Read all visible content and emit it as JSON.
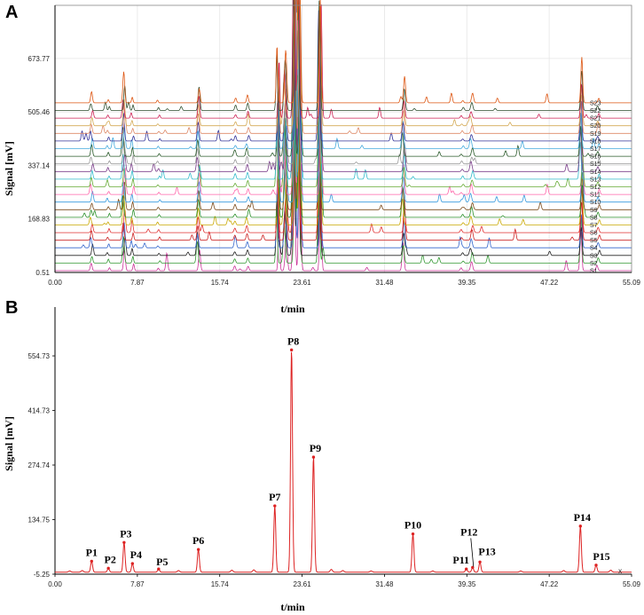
{
  "panels": {
    "a_letter": "A",
    "b_letter": "B"
  },
  "chart_data": [
    {
      "type": "line",
      "panel": "A",
      "xlabel": "",
      "ylabel": "Signal [mV]",
      "x_ticks": [
        "0.00",
        "7.87",
        "15.74",
        "23.61",
        "31.48",
        "39.35",
        "47.22",
        "55.09"
      ],
      "y_ticks": [
        "0.51",
        "168.83",
        "337.14",
        "505.46",
        "673.77"
      ],
      "xlim": [
        0,
        55.09
      ],
      "ylim": [
        0.51,
        841
      ],
      "grid": true,
      "offset_per_trace_mV": 24,
      "series": [
        {
          "name": "S1",
          "color": "#cc3399"
        },
        {
          "name": "S2",
          "color": "#339933"
        },
        {
          "name": "S3",
          "color": "#222222"
        },
        {
          "name": "S4",
          "color": "#3366cc"
        },
        {
          "name": "S5",
          "color": "#cc2222"
        },
        {
          "name": "S6",
          "color": "#e03030"
        },
        {
          "name": "S7",
          "color": "#c9a800"
        },
        {
          "name": "S8",
          "color": "#2b8f2b"
        },
        {
          "name": "S9",
          "color": "#7a4a1a"
        },
        {
          "name": "S10",
          "color": "#3399dd"
        },
        {
          "name": "S11",
          "color": "#ff66aa"
        },
        {
          "name": "S12",
          "color": "#66aa33"
        },
        {
          "name": "S13",
          "color": "#33bbcc"
        },
        {
          "name": "S14",
          "color": "#7a3d8a"
        },
        {
          "name": "S15",
          "color": "#999999"
        },
        {
          "name": "S16",
          "color": "#2a5a2a"
        },
        {
          "name": "S17",
          "color": "#44aadd"
        },
        {
          "name": "S18",
          "color": "#333399"
        },
        {
          "name": "S19",
          "color": "#dd8866"
        },
        {
          "name": "S20",
          "color": "#d4aa55"
        },
        {
          "name": "S21",
          "color": "#cc2255"
        },
        {
          "name": "S22",
          "color": "#2f4f2f"
        },
        {
          "name": "S23",
          "color": "#dd5511"
        }
      ],
      "peaks": [
        {
          "t": 3.5,
          "h": 28,
          "w": 0.12
        },
        {
          "t": 5.1,
          "h": 10,
          "w": 0.1
        },
        {
          "t": 6.6,
          "h": 76,
          "w": 0.12
        },
        {
          "t": 7.4,
          "h": 22,
          "w": 0.1
        },
        {
          "t": 9.9,
          "h": 8,
          "w": 0.1
        },
        {
          "t": 13.7,
          "h": 58,
          "w": 0.12
        },
        {
          "t": 17.2,
          "h": 14,
          "w": 0.12
        },
        {
          "t": 18.4,
          "h": 20,
          "w": 0.12
        },
        {
          "t": 21.3,
          "h": 170,
          "w": 0.1
        },
        {
          "t": 22.0,
          "h": 150,
          "w": 0.14
        },
        {
          "t": 22.9,
          "h": 610,
          "w": 0.13
        },
        {
          "t": 23.3,
          "h": 420,
          "w": 0.14
        },
        {
          "t": 25.3,
          "h": 320,
          "w": 0.12
        },
        {
          "t": 33.3,
          "h": 78,
          "w": 0.13
        },
        {
          "t": 38.9,
          "h": 8,
          "w": 0.12
        },
        {
          "t": 39.8,
          "h": 28,
          "w": 0.14
        },
        {
          "t": 50.3,
          "h": 122,
          "w": 0.12
        },
        {
          "t": 51.9,
          "h": 18,
          "w": 0.12
        }
      ]
    },
    {
      "type": "line",
      "panel": "B",
      "xlabel": "t/min",
      "ylabel": "Signal [mV]",
      "x_ticks": [
        "0.00",
        "7.87",
        "15.74",
        "23.61",
        "31.48",
        "39.35",
        "47.22",
        "55.09"
      ],
      "y_ticks": [
        "-5.25",
        "134.75",
        "274.74",
        "414.73",
        "554.73"
      ],
      "xlim": [
        0,
        55.09
      ],
      "ylim": [
        -5.25,
        680
      ],
      "grid": false,
      "series": [
        {
          "color": "#dd2222"
        }
      ],
      "peaks": [
        {
          "label": "P1",
          "t": 3.5,
          "h": 28
        },
        {
          "label": "P2",
          "t": 5.1,
          "h": 10
        },
        {
          "label": "P3",
          "t": 6.6,
          "h": 76
        },
        {
          "label": "P4",
          "t": 7.4,
          "h": 22
        },
        {
          "label": "P5",
          "t": 9.9,
          "h": 8
        },
        {
          "label": "P6",
          "t": 13.7,
          "h": 58
        },
        {
          "label": "P7",
          "t": 21.0,
          "h": 170
        },
        {
          "label": "P8",
          "t": 22.6,
          "h": 570
        },
        {
          "label": "P9",
          "t": 24.7,
          "h": 295
        },
        {
          "label": "P10",
          "t": 34.2,
          "h": 98
        },
        {
          "label": "P11",
          "t": 39.3,
          "h": 8
        },
        {
          "label": "P12",
          "t": 39.9,
          "h": 12
        },
        {
          "label": "P13",
          "t": 40.6,
          "h": 26
        },
        {
          "label": "P14",
          "t": 50.2,
          "h": 118
        },
        {
          "label": "P15",
          "t": 51.7,
          "h": 18
        }
      ],
      "extra_small_peaks": [
        {
          "t": 1.4,
          "h": 3
        },
        {
          "t": 2.6,
          "h": 4
        },
        {
          "t": 11.8,
          "h": 4
        },
        {
          "t": 16.9,
          "h": 5
        },
        {
          "t": 19.0,
          "h": 6
        },
        {
          "t": 26.4,
          "h": 7
        },
        {
          "t": 27.5,
          "h": 4
        },
        {
          "t": 30.2,
          "h": 3
        },
        {
          "t": 36.1,
          "h": 3
        },
        {
          "t": 44.5,
          "h": 3
        },
        {
          "t": 48.6,
          "h": 4
        },
        {
          "t": 53.1,
          "h": 5
        }
      ],
      "end_marker": "x"
    }
  ]
}
